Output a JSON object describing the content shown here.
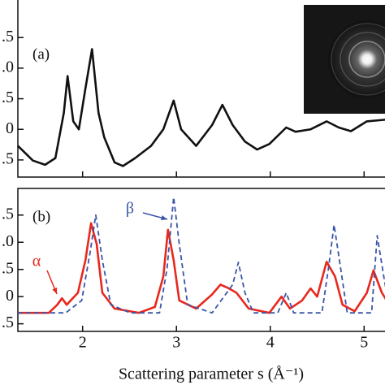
{
  "chart_data": [
    {
      "type": "line",
      "panel_label": "(a)",
      "xlim": [
        1.31,
        5.24
      ],
      "ylim": [
        -0.78,
        2.14
      ],
      "xticks": [
        2,
        3,
        4,
        5
      ],
      "yticks": [
        {
          "value": 1.5,
          "label": ".5"
        },
        {
          "value": 1.0,
          "label": ".0"
        },
        {
          "value": 0.5,
          "label": ".5"
        },
        0,
        {
          "value": -0.5,
          "label": ".5"
        }
      ],
      "series": [
        {
          "color": "#111111",
          "x": [
            1.31,
            1.47,
            1.6,
            1.71,
            1.8,
            1.84,
            1.9,
            1.96,
            2.03,
            2.1,
            2.17,
            2.23,
            2.34,
            2.43,
            2.56,
            2.73,
            2.86,
            2.97,
            3.05,
            3.21,
            3.38,
            3.49,
            3.6,
            3.73,
            3.86,
            3.99,
            4.17,
            4.27,
            4.43,
            4.6,
            4.73,
            4.86,
            5.03,
            5.24
          ],
          "values": [
            -0.27,
            -0.51,
            -0.58,
            -0.47,
            0.27,
            0.87,
            0.13,
            0,
            0.67,
            1.31,
            0.27,
            -0.13,
            -0.54,
            -0.6,
            -0.47,
            -0.27,
            0,
            0.47,
            0,
            -0.27,
            0.07,
            0.4,
            0.07,
            -0.2,
            -0.33,
            -0.24,
            0.03,
            -0.04,
            0,
            0.13,
            0.03,
            -0.03,
            0.13,
            0.16
          ]
        }
      ]
    },
    {
      "type": "line",
      "panel_label": "(b)",
      "xlabel": "Scattering parameter s (Å⁻¹)",
      "xlim": [
        1.31,
        5.24
      ],
      "ylim": [
        -0.64,
        1.99
      ],
      "xticks": [
        2,
        3,
        4,
        5
      ],
      "yticks": [
        {
          "value": 1.5,
          "label": ".5"
        },
        {
          "value": 1.0,
          "label": ".0"
        },
        {
          "value": 0.5,
          "label": ".5"
        },
        0,
        {
          "value": -0.5,
          "label": ".5"
        }
      ],
      "series": [
        {
          "name": "α",
          "color": "#e8281e",
          "x": [
            1.31,
            1.64,
            1.73,
            1.78,
            1.83,
            1.95,
            2.03,
            2.09,
            2.15,
            2.21,
            2.34,
            2.6,
            2.77,
            2.86,
            2.91,
            2.97,
            3.03,
            3.21,
            3.38,
            3.47,
            3.56,
            3.64,
            3.77,
            3.99,
            4.12,
            4.21,
            4.34,
            4.43,
            4.5,
            4.6,
            4.69,
            4.77,
            4.9,
            5.03,
            5.1,
            5.19,
            5.24
          ],
          "values": [
            -0.3,
            -0.3,
            -0.15,
            -0.03,
            -0.15,
            0.07,
            0.67,
            1.35,
            0.97,
            0.07,
            -0.22,
            -0.3,
            -0.19,
            0.37,
            1.23,
            0.67,
            -0.07,
            -0.22,
            0.04,
            0.22,
            0.15,
            0.07,
            -0.22,
            -0.3,
            0,
            -0.22,
            -0.07,
            0.15,
            0,
            0.64,
            0.37,
            -0.15,
            -0.27,
            0.07,
            0.48,
            0.07,
            -0.07
          ]
        },
        {
          "name": "β",
          "color": "#3a55a8",
          "dashed": true,
          "x": [
            1.31,
            1.82,
            1.99,
            2.08,
            2.14,
            2.21,
            2.3,
            2.51,
            2.82,
            2.9,
            2.97,
            3.03,
            3.12,
            3.38,
            3.6,
            3.66,
            3.73,
            3.82,
            4.08,
            4.17,
            4.25,
            4.55,
            4.62,
            4.68,
            4.75,
            4.82,
            5.08,
            5.14,
            5.21,
            5.24
          ],
          "values": [
            -0.3,
            -0.3,
            -0.07,
            0.82,
            1.5,
            0.67,
            -0.15,
            -0.3,
            -0.3,
            0.52,
            1.83,
            0.97,
            -0.15,
            -0.3,
            0.22,
            0.63,
            0.07,
            -0.3,
            -0.3,
            0.07,
            -0.3,
            -0.3,
            0.52,
            1.32,
            0.52,
            -0.3,
            -0.3,
            1.12,
            0.37,
            0.07
          ]
        }
      ]
    }
  ]
}
